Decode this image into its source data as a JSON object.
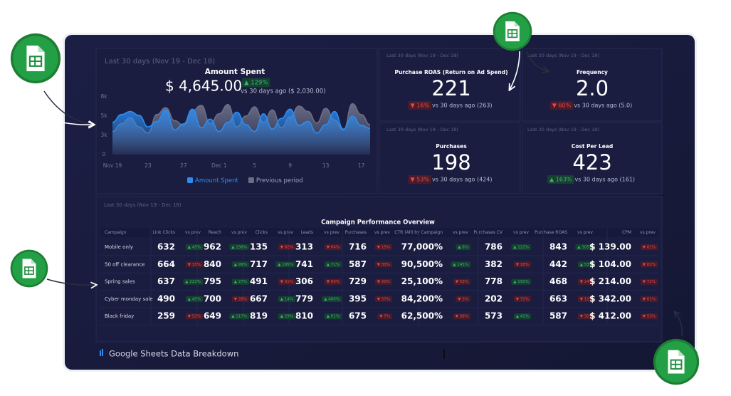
{
  "amount_spent": {
    "period": "Last 30 days (Nov 19 - Dec 18)",
    "title": "Amount Spent",
    "value": "$ 4,645.00",
    "delta": "▲ 129%",
    "compare": "vs 30 days ago ($ 2,030.00)",
    "chart": {
      "type": "area",
      "categories": [
        "Nov 19",
        null,
        null,
        null,
        "23",
        null,
        null,
        null,
        "27",
        null,
        null,
        null,
        "Dec 1",
        null,
        null,
        null,
        "5",
        null,
        null,
        null,
        "9",
        null,
        null,
        null,
        "13",
        null,
        null,
        null,
        "17",
        null
      ],
      "ylim": [
        0,
        7500
      ],
      "yticks": [
        0,
        {
          "value": 2500,
          "label": "3k"
        },
        {
          "value": 5000,
          "label": "5k"
        },
        {
          "value": 7500,
          "label": "8k"
        }
      ],
      "series": [
        {
          "name": "Previous period",
          "color": "#6b6f86",
          "values": [
            3000,
            4000,
            4800,
            3600,
            2800,
            5200,
            6100,
            4400,
            3800,
            5700,
            6400,
            4000,
            5300,
            6500,
            3600,
            5000,
            6200,
            4200,
            5800,
            3500,
            4900,
            6300,
            5600,
            4100,
            6000,
            4500,
            3200,
            6600,
            5200,
            3900
          ]
        },
        {
          "name": "Amount Spent",
          "color": "#2d8cf0",
          "values": [
            4200,
            5200,
            5600,
            5100,
            3600,
            4300,
            5800,
            3200,
            4000,
            5900,
            3500,
            4600,
            3000,
            4200,
            5500,
            3900,
            3000,
            5300,
            3300,
            4700,
            5900,
            3800,
            4300,
            2800,
            3900,
            5600,
            3300,
            5000,
            3800,
            3400
          ]
        }
      ]
    }
  },
  "kpis": [
    {
      "period": "Last 30 days (Nov 19 - Dec 18)",
      "title": "Purchase ROAS (Return on Ad Spend)",
      "value": "221",
      "delta": "▼ 16%",
      "compare": "vs 30 days ago (263)"
    },
    {
      "period": "Last 30 days (Nov 19 - Dec 18)",
      "title": "Frequency",
      "value": "2.0",
      "delta": "▼ 60%",
      "compare": "vs 30 days ago (5.0)"
    },
    {
      "period": "Last 30 days (Nov 19 - Dec 18)",
      "title": "Purchases",
      "value": "198",
      "delta": "▼ 53%",
      "compare": "vs 30 days ago (424)"
    },
    {
      "period": "Last 30 days (Nov 19 - Dec 18)",
      "title": "Cost Per Lead",
      "value": "423",
      "delta": "▲ 163%",
      "compare": "vs 30 days ago (161)"
    }
  ],
  "table": {
    "period": "Last 30 days (Nov 19 - Dec 18)",
    "title": "Campaign Performance Overview",
    "headers": [
      "Campaign",
      "Link Clicks",
      "vs prev",
      "Reach",
      "vs prev",
      "Clicks",
      "vs prev",
      "Leads",
      "vs prev",
      "Purchases",
      "vs prev",
      "CTR (All) by Campaign",
      "vs prev",
      "Purchases CV",
      "vs prev",
      "Purchase ROAS",
      "vs prev",
      "CPM",
      "vs prev"
    ],
    "rows": [
      [
        "Mobile only",
        "632",
        "▲ 45%",
        "962",
        "▲ 138%",
        "135",
        "▼ 82%",
        "313",
        "▼ 64%",
        "716",
        "▼ 15%",
        "77,000%",
        "▲ 8%",
        "786",
        "▲ 122%",
        "843",
        "▲ 305%",
        "$ 139.00",
        "▼ 82%"
      ],
      [
        "50 off clearance",
        "664",
        "▼ 15%",
        "840",
        "▲ 99%",
        "717",
        "▲ 195%",
        "741",
        "▲ 71%",
        "587",
        "▼ 33%",
        "90,500%",
        "▲ 145%",
        "382",
        "▼ 18%",
        "442",
        "▲ 53%",
        "$ 104.00",
        "▼ 82%"
      ],
      [
        "Spring sales",
        "637",
        "▲ 222%",
        "795",
        "▲ 27%",
        "491",
        "▼ 31%",
        "306",
        "▼ 69%",
        "729",
        "▼ 20%",
        "25,100%",
        "▼ 53%",
        "778",
        "▲ 191%",
        "468",
        "▼ 24%",
        "$ 214.00",
        "▼ 72%"
      ],
      [
        "Cyber monday sale",
        "490",
        "▲ 45%",
        "700",
        "▼ 28%",
        "667",
        "▲ 14%",
        "779",
        "▲ 400%",
        "395",
        "▼ 57%",
        "84,200%",
        "▼ 3%",
        "202",
        "▼ 71%",
        "663",
        "▼ 11%",
        "$ 342.00",
        "▼ 61%"
      ],
      [
        "Black friday",
        "259",
        "▼ 52%",
        "649",
        "▲ 117%",
        "819",
        "▲ 29%",
        "810",
        "▲ 61%",
        "675",
        "▼ 7%",
        "62,500%",
        "▼ 38%",
        "573",
        "▲ 41%",
        "587",
        "▼ 32%",
        "$ 412.00",
        "▼ 53%"
      ]
    ]
  },
  "footer": "Google Sheets Data Breakdown"
}
